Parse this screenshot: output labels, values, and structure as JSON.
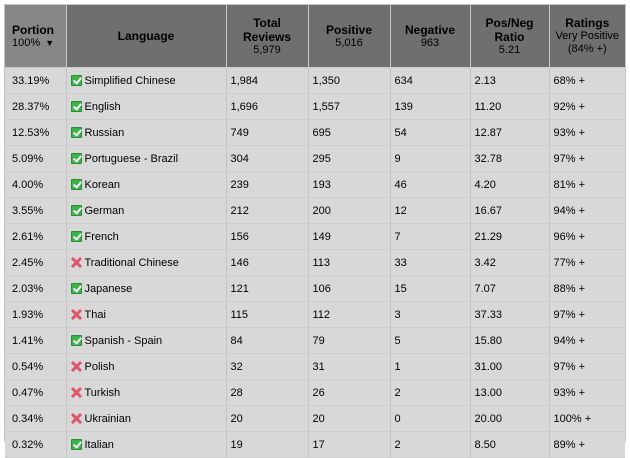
{
  "header": {
    "portion": {
      "label": "Portion",
      "sub": "100%",
      "sort_indicator": "▼"
    },
    "language": {
      "label": "Language"
    },
    "total": {
      "label": "Total Reviews",
      "sub": "5,979"
    },
    "positive": {
      "label": "Positive",
      "sub": "5,016"
    },
    "negative": {
      "label": "Negative",
      "sub": "963"
    },
    "ratio": {
      "label": "Pos/Neg Ratio",
      "sub": "5.21"
    },
    "rating": {
      "label": "Ratings",
      "sub": "Very Positive",
      "sub2": "(84% +)"
    }
  },
  "icons": {
    "supported": "checkmark-icon",
    "unsupported": "cross-icon",
    "supported_color": "#3bb54a",
    "unsupported_color": "#e0566a"
  },
  "rows": [
    {
      "portion": "33.19%",
      "language": "Simplified Chinese",
      "supported": true,
      "total": "1,984",
      "positive": "1,350",
      "negative": "634",
      "ratio": "2.13",
      "rating": "68% +"
    },
    {
      "portion": "28.37%",
      "language": "English",
      "supported": true,
      "total": "1,696",
      "positive": "1,557",
      "negative": "139",
      "ratio": "11.20",
      "rating": "92% +"
    },
    {
      "portion": "12.53%",
      "language": "Russian",
      "supported": true,
      "total": "749",
      "positive": "695",
      "negative": "54",
      "ratio": "12.87",
      "rating": "93% +"
    },
    {
      "portion": "5.09%",
      "language": "Portuguese - Brazil",
      "supported": true,
      "total": "304",
      "positive": "295",
      "negative": "9",
      "ratio": "32.78",
      "rating": "97% +"
    },
    {
      "portion": "4.00%",
      "language": "Korean",
      "supported": true,
      "total": "239",
      "positive": "193",
      "negative": "46",
      "ratio": "4.20",
      "rating": "81% +"
    },
    {
      "portion": "3.55%",
      "language": "German",
      "supported": true,
      "total": "212",
      "positive": "200",
      "negative": "12",
      "ratio": "16.67",
      "rating": "94% +"
    },
    {
      "portion": "2.61%",
      "language": "French",
      "supported": true,
      "total": "156",
      "positive": "149",
      "negative": "7",
      "ratio": "21.29",
      "rating": "96% +"
    },
    {
      "portion": "2.45%",
      "language": "Traditional Chinese",
      "supported": false,
      "total": "146",
      "positive": "113",
      "negative": "33",
      "ratio": "3.42",
      "rating": "77% +"
    },
    {
      "portion": "2.03%",
      "language": "Japanese",
      "supported": true,
      "total": "121",
      "positive": "106",
      "negative": "15",
      "ratio": "7.07",
      "rating": "88% +"
    },
    {
      "portion": "1.93%",
      "language": "Thai",
      "supported": false,
      "total": "115",
      "positive": "112",
      "negative": "3",
      "ratio": "37.33",
      "rating": "97% +"
    },
    {
      "portion": "1.41%",
      "language": "Spanish - Spain",
      "supported": true,
      "total": "84",
      "positive": "79",
      "negative": "5",
      "ratio": "15.80",
      "rating": "94% +"
    },
    {
      "portion": "0.54%",
      "language": "Polish",
      "supported": false,
      "total": "32",
      "positive": "31",
      "negative": "1",
      "ratio": "31.00",
      "rating": "97% +"
    },
    {
      "portion": "0.47%",
      "language": "Turkish",
      "supported": false,
      "total": "28",
      "positive": "26",
      "negative": "2",
      "ratio": "13.00",
      "rating": "93% +"
    },
    {
      "portion": "0.34%",
      "language": "Ukrainian",
      "supported": false,
      "total": "20",
      "positive": "20",
      "negative": "0",
      "ratio": "20.00",
      "rating": "100% +"
    },
    {
      "portion": "0.32%",
      "language": "Italian",
      "supported": true,
      "total": "19",
      "positive": "17",
      "negative": "2",
      "ratio": "8.50",
      "rating": "89% +"
    }
  ]
}
